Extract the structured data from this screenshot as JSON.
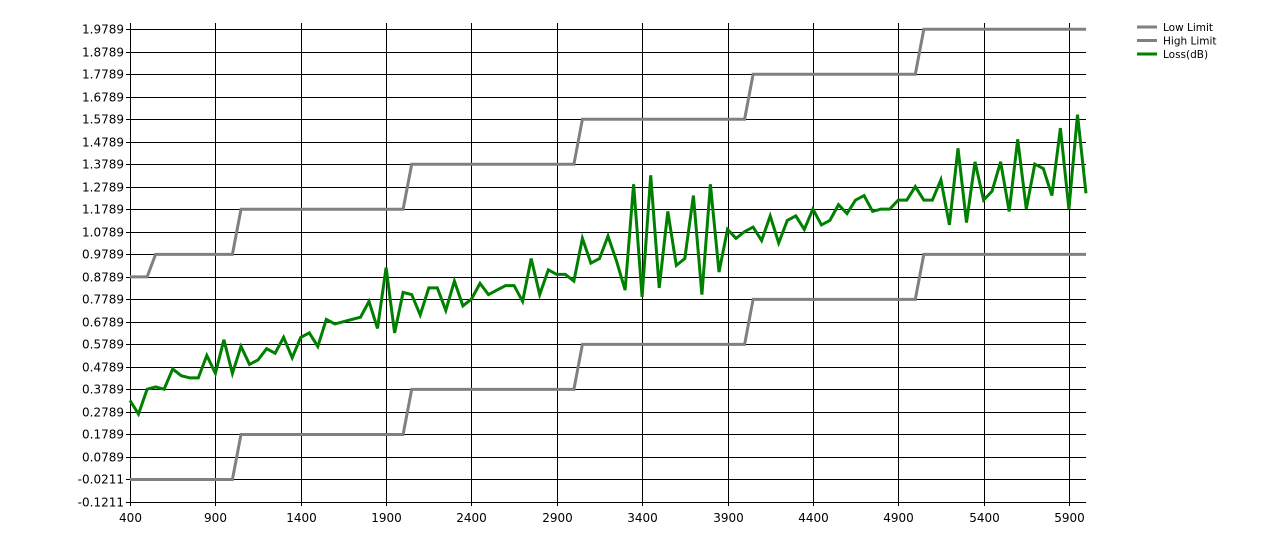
{
  "chart_data": {
    "type": "line",
    "xlim": [
      400,
      6000
    ],
    "ylim": [
      -0.1211,
      2.0289
    ],
    "x_ticks": [
      400,
      900,
      1400,
      1900,
      2400,
      2900,
      3400,
      3900,
      4400,
      4900,
      5400,
      5900
    ],
    "x_tick_labels": [
      "400",
      "900",
      "1400",
      "1900",
      "2400",
      "2900",
      "3400",
      "3900",
      "4400",
      "4900",
      "5400",
      "5900"
    ],
    "y_ticks": [
      -0.1211,
      -0.0211,
      0.0789,
      0.1789,
      0.2789,
      0.3789,
      0.4789,
      0.5789,
      0.6789,
      0.7789,
      0.8789,
      0.9789,
      1.0789,
      1.1789,
      1.2789,
      1.3789,
      1.4789,
      1.5789,
      1.6789,
      1.7789,
      1.8789,
      1.9789
    ],
    "y_tick_labels": [
      "-0.1211",
      "-0.0211",
      "0.0789",
      "0.1789",
      "0.2789",
      "0.3789",
      "0.4789",
      "0.5789",
      "0.6789",
      "0.7789",
      "0.8789",
      "0.9789",
      "1.0789",
      "1.1789",
      "1.2789",
      "1.3789",
      "1.4789",
      "1.5789",
      "1.6789",
      "1.7789",
      "1.8789",
      "1.9789"
    ],
    "grid": true,
    "legend_position": "top-right",
    "title": "",
    "xlabel": "",
    "ylabel": "",
    "series": [
      {
        "name": "Low Limit",
        "color": "#808080",
        "x": [
          400,
          1000,
          1050,
          2000,
          2050,
          3000,
          3050,
          4000,
          4050,
          5000,
          5050,
          6000
        ],
        "values": [
          -0.0211,
          -0.0211,
          0.1789,
          0.1789,
          0.3789,
          0.3789,
          0.5789,
          0.5789,
          0.7789,
          0.7789,
          0.9789,
          0.9789
        ]
      },
      {
        "name": "High Limit",
        "color": "#808080",
        "x": [
          400,
          500,
          550,
          1000,
          1050,
          2000,
          2050,
          3000,
          3050,
          4000,
          4050,
          5000,
          5050,
          6000
        ],
        "values": [
          0.8789,
          0.8789,
          0.9789,
          0.9789,
          1.1789,
          1.1789,
          1.3789,
          1.3789,
          1.5789,
          1.5789,
          1.7789,
          1.7789,
          1.9789,
          1.9789
        ]
      },
      {
        "name": "Loss(dB)",
        "color": "#008000",
        "x": [
          400,
          450,
          500,
          550,
          600,
          650,
          700,
          750,
          800,
          850,
          900,
          950,
          1000,
          1050,
          1100,
          1150,
          1200,
          1250,
          1300,
          1350,
          1400,
          1450,
          1500,
          1550,
          1600,
          1650,
          1700,
          1750,
          1800,
          1850,
          1900,
          1950,
          2000,
          2050,
          2100,
          2150,
          2200,
          2250,
          2300,
          2350,
          2400,
          2450,
          2500,
          2550,
          2600,
          2650,
          2700,
          2750,
          2800,
          2850,
          2900,
          2950,
          3000,
          3050,
          3100,
          3150,
          3200,
          3250,
          3300,
          3350,
          3400,
          3450,
          3500,
          3550,
          3600,
          3650,
          3700,
          3750,
          3800,
          3850,
          3900,
          3950,
          4000,
          4050,
          4100,
          4150,
          4200,
          4250,
          4300,
          4350,
          4400,
          4450,
          4500,
          4550,
          4600,
          4650,
          4700,
          4750,
          4800,
          4850,
          4900,
          4950,
          5000,
          5050,
          5100,
          5150,
          5200,
          5250,
          5300,
          5350,
          5400,
          5450,
          5500,
          5550,
          5600,
          5650,
          5700,
          5750,
          5800,
          5850,
          5900,
          5950,
          6000
        ],
        "values": [
          0.33,
          0.27,
          0.38,
          0.39,
          0.38,
          0.47,
          0.44,
          0.43,
          0.43,
          0.53,
          0.45,
          0.6,
          0.45,
          0.57,
          0.49,
          0.51,
          0.56,
          0.54,
          0.61,
          0.52,
          0.61,
          0.63,
          0.57,
          0.69,
          0.67,
          0.68,
          0.69,
          0.7,
          0.77,
          0.65,
          0.92,
          0.63,
          0.81,
          0.8,
          0.71,
          0.83,
          0.83,
          0.73,
          0.86,
          0.75,
          0.78,
          0.85,
          0.8,
          0.82,
          0.84,
          0.84,
          0.77,
          0.96,
          0.8,
          0.91,
          0.89,
          0.89,
          0.86,
          1.05,
          0.94,
          0.96,
          1.06,
          0.95,
          0.82,
          1.29,
          0.79,
          1.33,
          0.83,
          1.17,
          0.93,
          0.96,
          1.24,
          0.8,
          1.29,
          0.9,
          1.09,
          1.05,
          1.08,
          1.1,
          1.04,
          1.15,
          1.03,
          1.13,
          1.15,
          1.09,
          1.18,
          1.11,
          1.13,
          1.2,
          1.16,
          1.22,
          1.24,
          1.17,
          1.18,
          1.18,
          1.22,
          1.22,
          1.28,
          1.22,
          1.22,
          1.31,
          1.11,
          1.45,
          1.12,
          1.39,
          1.22,
          1.26,
          1.39,
          1.17,
          1.49,
          1.18,
          1.38,
          1.36,
          1.24,
          1.54,
          1.18,
          1.6,
          1.25
        ]
      }
    ]
  }
}
